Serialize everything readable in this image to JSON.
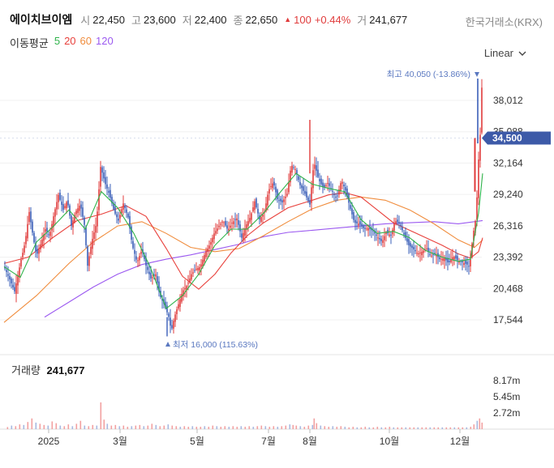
{
  "header": {
    "name": "에이치브이엠",
    "open_label": "시",
    "open": "22,450",
    "high_label": "고",
    "high": "23,600",
    "low_label": "저",
    "low": "22,400",
    "close_label": "종",
    "close": "22,650",
    "change": "100",
    "change_pct": "+0.44%",
    "volume_label": "거",
    "volume": "241,677",
    "exchange": "한국거래소(KRX)"
  },
  "ma_legend": {
    "title": "이동평균",
    "items": [
      {
        "label": "5",
        "color": "#2fb34a"
      },
      {
        "label": "20",
        "color": "#e8413c"
      },
      {
        "label": "60",
        "color": "#f08c3c"
      },
      {
        "label": "120",
        "color": "#9b59f0"
      }
    ]
  },
  "scale_selector": {
    "label": "Linear"
  },
  "price_axis": {
    "ticks": [
      "38,012",
      "35,088",
      "32,164",
      "29,240",
      "26,316",
      "23,392",
      "20,468",
      "17,544"
    ],
    "current": "34,500"
  },
  "annotations": {
    "high": "최고 40,050 (-13.86%)",
    "low": "최저 16,000 (115.63%)"
  },
  "volume_panel": {
    "title": "거래량",
    "value": "241,677",
    "ticks": [
      "8.17m",
      "5.45m",
      "2.72m"
    ]
  },
  "time_axis": [
    "2025",
    "3월",
    "5월",
    "7월",
    "8월",
    "10월",
    "12월"
  ],
  "colors": {
    "up": "#e03b3b",
    "down": "#3a5fb8",
    "current_price_bg": "#3d5aa8"
  },
  "chart_data": {
    "type": "candlestick",
    "x_range": [
      "2024-12",
      "2025-12"
    ],
    "ylim": [
      15000,
      41500
    ],
    "y_ticks": [
      38012,
      35088,
      32164,
      29240,
      26316,
      23392,
      20468,
      17544
    ],
    "x_ticks": [
      "2025",
      "3월",
      "5월",
      "7월",
      "8월",
      "10월",
      "12월"
    ],
    "close_path": [
      [
        0,
        22500
      ],
      [
        6,
        21500
      ],
      [
        13,
        20200
      ],
      [
        20,
        22800
      ],
      [
        26,
        24800
      ],
      [
        31,
        27600
      ],
      [
        36,
        25200
      ],
      [
        40,
        23500
      ],
      [
        46,
        24800
      ],
      [
        51,
        26000
      ],
      [
        56,
        25400
      ],
      [
        61,
        27200
      ],
      [
        67,
        29200
      ],
      [
        73,
        27800
      ],
      [
        78,
        28700
      ],
      [
        83,
        26300
      ],
      [
        88,
        27600
      ],
      [
        94,
        28300
      ],
      [
        99,
        26400
      ],
      [
        103,
        22600
      ],
      [
        108,
        24800
      ],
      [
        114,
        26600
      ],
      [
        119,
        31800
      ],
      [
        125,
        30200
      ],
      [
        130,
        29200
      ],
      [
        136,
        27600
      ],
      [
        141,
        26800
      ],
      [
        147,
        28400
      ],
      [
        153,
        27100
      ],
      [
        158,
        24500
      ],
      [
        164,
        22900
      ],
      [
        170,
        24100
      ],
      [
        175,
        22600
      ],
      [
        181,
        21400
      ],
      [
        187,
        21800
      ],
      [
        192,
        19800
      ],
      [
        198,
        18900
      ],
      [
        204,
        17600
      ],
      [
        206,
        16400
      ],
      [
        210,
        17800
      ],
      [
        215,
        19000
      ],
      [
        220,
        20200
      ],
      [
        226,
        20800
      ],
      [
        231,
        21800
      ],
      [
        237,
        22300
      ],
      [
        242,
        22500
      ],
      [
        248,
        23800
      ],
      [
        254,
        24600
      ],
      [
        259,
        25600
      ],
      [
        265,
        26300
      ],
      [
        270,
        26800
      ],
      [
        276,
        25900
      ],
      [
        281,
        26600
      ],
      [
        287,
        27000
      ],
      [
        293,
        25200
      ],
      [
        298,
        26300
      ],
      [
        304,
        27200
      ],
      [
        309,
        28600
      ],
      [
        315,
        26900
      ],
      [
        321,
        27600
      ],
      [
        326,
        29600
      ],
      [
        332,
        30400
      ],
      [
        337,
        28800
      ],
      [
        343,
        28500
      ],
      [
        349,
        29300
      ],
      [
        354,
        32000
      ],
      [
        359,
        31600
      ],
      [
        365,
        30100
      ],
      [
        371,
        29300
      ],
      [
        377,
        28300
      ],
      [
        382,
        32300
      ],
      [
        388,
        30600
      ],
      [
        394,
        29800
      ],
      [
        399,
        30300
      ],
      [
        405,
        29500
      ],
      [
        410,
        28800
      ],
      [
        416,
        30600
      ],
      [
        421,
        29600
      ],
      [
        427,
        27900
      ],
      [
        432,
        26600
      ],
      [
        438,
        26500
      ],
      [
        444,
        26000
      ],
      [
        449,
        26100
      ],
      [
        455,
        25800
      ],
      [
        460,
        25300
      ],
      [
        466,
        24800
      ],
      [
        471,
        25700
      ],
      [
        477,
        25400
      ],
      [
        482,
        26800
      ],
      [
        488,
        26500
      ],
      [
        493,
        25500
      ],
      [
        499,
        24500
      ],
      [
        504,
        24200
      ],
      [
        510,
        23700
      ],
      [
        515,
        23900
      ],
      [
        521,
        24200
      ],
      [
        526,
        23500
      ],
      [
        532,
        23700
      ],
      [
        537,
        23200
      ],
      [
        543,
        23300
      ],
      [
        548,
        22800
      ],
      [
        554,
        23500
      ],
      [
        559,
        23100
      ],
      [
        565,
        22900
      ],
      [
        571,
        22700
      ],
      [
        574,
        22500
      ],
      [
        578,
        25400
      ],
      [
        582,
        27200
      ],
      [
        585,
        32500
      ],
      [
        587,
        34800
      ],
      [
        589,
        39200
      ],
      [
        590,
        34500
      ]
    ],
    "ma5_path": [
      [
        0,
        22500
      ],
      [
        20,
        21500
      ],
      [
        40,
        24800
      ],
      [
        60,
        26200
      ],
      [
        80,
        27800
      ],
      [
        100,
        26000
      ],
      [
        120,
        29500
      ],
      [
        140,
        28000
      ],
      [
        160,
        25600
      ],
      [
        180,
        22500
      ],
      [
        200,
        18600
      ],
      [
        220,
        19800
      ],
      [
        240,
        21800
      ],
      [
        260,
        24500
      ],
      [
        280,
        26000
      ],
      [
        300,
        26000
      ],
      [
        320,
        27500
      ],
      [
        340,
        29400
      ],
      [
        360,
        31200
      ],
      [
        380,
        30200
      ],
      [
        400,
        29800
      ],
      [
        420,
        29500
      ],
      [
        440,
        26900
      ],
      [
        460,
        25600
      ],
      [
        480,
        25800
      ],
      [
        500,
        25200
      ],
      [
        520,
        24000
      ],
      [
        540,
        23400
      ],
      [
        560,
        23000
      ],
      [
        575,
        23200
      ],
      [
        585,
        27500
      ],
      [
        590,
        31200
      ]
    ],
    "ma20_path": [
      [
        0,
        22800
      ],
      [
        30,
        23400
      ],
      [
        60,
        25200
      ],
      [
        90,
        26800
      ],
      [
        120,
        27400
      ],
      [
        150,
        28200
      ],
      [
        175,
        27200
      ],
      [
        200,
        24200
      ],
      [
        220,
        21600
      ],
      [
        240,
        20400
      ],
      [
        260,
        21800
      ],
      [
        280,
        23800
      ],
      [
        300,
        25400
      ],
      [
        320,
        26600
      ],
      [
        350,
        28000
      ],
      [
        380,
        28700
      ],
      [
        400,
        29200
      ],
      [
        420,
        29400
      ],
      [
        440,
        29000
      ],
      [
        460,
        27800
      ],
      [
        480,
        26600
      ],
      [
        500,
        25900
      ],
      [
        520,
        25200
      ],
      [
        540,
        24500
      ],
      [
        560,
        23700
      ],
      [
        575,
        23300
      ],
      [
        585,
        23900
      ],
      [
        590,
        25200
      ]
    ],
    "ma60_path": [
      [
        0,
        17300
      ],
      [
        40,
        19800
      ],
      [
        80,
        22800
      ],
      [
        110,
        24800
      ],
      [
        140,
        26300
      ],
      [
        170,
        26700
      ],
      [
        200,
        25600
      ],
      [
        230,
        24300
      ],
      [
        260,
        23900
      ],
      [
        290,
        24200
      ],
      [
        320,
        25400
      ],
      [
        350,
        26700
      ],
      [
        380,
        27900
      ],
      [
        410,
        28700
      ],
      [
        440,
        29000
      ],
      [
        470,
        28700
      ],
      [
        500,
        27800
      ],
      [
        530,
        26500
      ],
      [
        560,
        25000
      ],
      [
        580,
        24300
      ],
      [
        590,
        25000
      ]
    ],
    "ma120_path": [
      [
        50,
        17800
      ],
      [
        80,
        19200
      ],
      [
        110,
        20600
      ],
      [
        140,
        21800
      ],
      [
        170,
        22700
      ],
      [
        200,
        23200
      ],
      [
        230,
        23600
      ],
      [
        260,
        24100
      ],
      [
        290,
        24600
      ],
      [
        320,
        25300
      ],
      [
        350,
        25700
      ],
      [
        380,
        25900
      ],
      [
        410,
        26100
      ],
      [
        440,
        26300
      ],
      [
        470,
        26500
      ],
      [
        500,
        26600
      ],
      [
        530,
        26700
      ],
      [
        560,
        26500
      ],
      [
        590,
        26800
      ]
    ],
    "volume_bars_millions": [
      [
        5,
        0.35
      ],
      [
        10,
        0.6
      ],
      [
        15,
        0.5
      ],
      [
        20,
        0.8
      ],
      [
        25,
        0.7
      ],
      [
        30,
        1.2
      ],
      [
        35,
        1.8
      ],
      [
        40,
        1.1
      ],
      [
        45,
        0.9
      ],
      [
        50,
        0.7
      ],
      [
        55,
        0.6
      ],
      [
        60,
        1.3
      ],
      [
        65,
        1.0
      ],
      [
        70,
        0.6
      ],
      [
        75,
        0.5
      ],
      [
        80,
        0.8
      ],
      [
        85,
        0.5
      ],
      [
        90,
        0.9
      ],
      [
        95,
        1.4
      ],
      [
        100,
        0.6
      ],
      [
        105,
        0.5
      ],
      [
        110,
        0.7
      ],
      [
        115,
        0.6
      ],
      [
        120,
        4.5
      ],
      [
        124,
        1.6
      ],
      [
        128,
        0.9
      ],
      [
        133,
        0.6
      ],
      [
        138,
        0.7
      ],
      [
        143,
        0.5
      ],
      [
        148,
        0.6
      ],
      [
        153,
        0.4
      ],
      [
        158,
        0.5
      ],
      [
        163,
        0.6
      ],
      [
        168,
        0.7
      ],
      [
        173,
        0.5
      ],
      [
        178,
        0.6
      ],
      [
        183,
        0.9
      ],
      [
        188,
        0.7
      ],
      [
        193,
        0.5
      ],
      [
        198,
        0.6
      ],
      [
        203,
        0.8
      ],
      [
        208,
        0.6
      ],
      [
        213,
        0.5
      ],
      [
        218,
        0.4
      ],
      [
        223,
        0.5
      ],
      [
        228,
        0.4
      ],
      [
        233,
        0.5
      ],
      [
        238,
        0.4
      ],
      [
        243,
        0.4
      ],
      [
        248,
        0.5
      ],
      [
        253,
        0.4
      ],
      [
        258,
        0.6
      ],
      [
        263,
        0.5
      ],
      [
        268,
        0.4
      ],
      [
        273,
        0.5
      ],
      [
        278,
        0.4
      ],
      [
        283,
        0.5
      ],
      [
        288,
        0.4
      ],
      [
        293,
        0.5
      ],
      [
        298,
        0.4
      ],
      [
        303,
        0.5
      ],
      [
        308,
        0.4
      ],
      [
        313,
        0.5
      ],
      [
        318,
        0.6
      ],
      [
        323,
        0.5
      ],
      [
        328,
        0.4
      ],
      [
        333,
        0.5
      ],
      [
        338,
        0.4
      ],
      [
        343,
        0.5
      ],
      [
        348,
        0.6
      ],
      [
        353,
        0.8
      ],
      [
        357,
        0.7
      ],
      [
        361,
        0.6
      ],
      [
        366,
        0.5
      ],
      [
        371,
        0.4
      ],
      [
        376,
        0.6
      ],
      [
        381,
        0.7
      ],
      [
        383,
        1.8
      ],
      [
        386,
        1.0
      ],
      [
        391,
        0.6
      ],
      [
        396,
        0.5
      ],
      [
        401,
        0.4
      ],
      [
        406,
        0.5
      ],
      [
        411,
        0.4
      ],
      [
        416,
        0.5
      ],
      [
        421,
        0.4
      ],
      [
        426,
        0.3
      ],
      [
        431,
        0.4
      ],
      [
        436,
        0.3
      ],
      [
        441,
        0.3
      ],
      [
        446,
        0.4
      ],
      [
        451,
        0.3
      ],
      [
        456,
        0.3
      ],
      [
        461,
        0.4
      ],
      [
        466,
        0.3
      ],
      [
        471,
        0.3
      ],
      [
        476,
        0.4
      ],
      [
        481,
        0.3
      ],
      [
        486,
        0.3
      ],
      [
        491,
        0.3
      ],
      [
        496,
        0.3
      ],
      [
        501,
        0.3
      ],
      [
        506,
        0.3
      ],
      [
        511,
        0.3
      ],
      [
        516,
        0.3
      ],
      [
        521,
        0.3
      ],
      [
        526,
        0.3
      ],
      [
        531,
        0.3
      ],
      [
        536,
        0.3
      ],
      [
        541,
        0.3
      ],
      [
        546,
        0.3
      ],
      [
        551,
        0.3
      ],
      [
        556,
        0.3
      ],
      [
        561,
        0.3
      ],
      [
        566,
        0.3
      ],
      [
        571,
        0.3
      ],
      [
        576,
        0.4
      ],
      [
        580,
        0.8
      ],
      [
        584,
        1.4
      ],
      [
        587,
        1.8
      ],
      [
        590,
        1.1
      ]
    ],
    "volume_ticks_millions": [
      8.17,
      5.45,
      2.72
    ],
    "high": {
      "value": 40050,
      "label": "최고 40,050 (-13.86%)"
    },
    "low": {
      "value": 16000,
      "label": "최저 16,000 (115.63%)"
    },
    "current_price": 34500,
    "grid": true,
    "legend": "top-left"
  }
}
